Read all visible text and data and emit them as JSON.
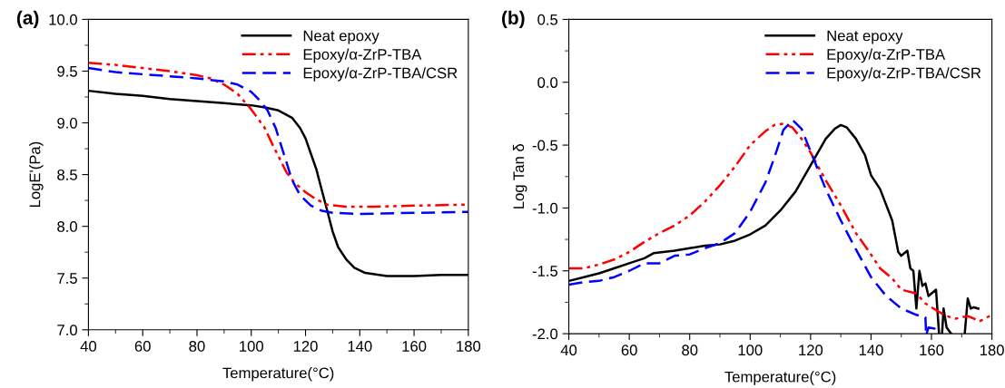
{
  "chart_data": [
    {
      "type": "line",
      "annotations": [
        "(a)"
      ],
      "xlabel": "Temperature(°C)",
      "ylabel": "LogE'(Pa)",
      "xlim": [
        40,
        180
      ],
      "xticks": [
        40,
        60,
        80,
        100,
        120,
        140,
        160,
        180
      ],
      "ylim": [
        7.0,
        10.0
      ],
      "yticks": [
        {
          "value": 7.0,
          "label": "7.0"
        },
        {
          "value": 7.5,
          "label": "7.5"
        },
        {
          "value": 8.0,
          "label": "8.0"
        },
        {
          "value": 8.5,
          "label": "8.5"
        },
        {
          "value": 9.0,
          "label": "9.0"
        },
        {
          "value": 9.5,
          "label": "9.5"
        },
        {
          "value": 10.0,
          "label": "10.0"
        }
      ],
      "grid": false,
      "legend": "top right",
      "series": [
        {
          "name": "Neat epoxy",
          "color": "#000000",
          "line_style": "solid",
          "x": [
            40,
            50,
            60,
            70,
            80,
            90,
            100,
            105,
            110,
            115,
            118,
            120,
            122,
            124,
            126,
            128,
            130,
            132,
            135,
            138,
            142,
            150,
            160,
            170,
            180
          ],
          "values": [
            9.31,
            9.28,
            9.26,
            9.23,
            9.21,
            9.19,
            9.17,
            9.15,
            9.12,
            9.05,
            8.95,
            8.85,
            8.7,
            8.55,
            8.35,
            8.15,
            7.95,
            7.8,
            7.68,
            7.6,
            7.55,
            7.52,
            7.52,
            7.53,
            7.53
          ]
        },
        {
          "name": "Epoxy/α-ZrP-TBA",
          "color": "#ff0000",
          "line_style": "dashdot",
          "x": [
            40,
            50,
            60,
            70,
            80,
            85,
            90,
            95,
            100,
            105,
            108,
            110,
            113,
            116,
            120,
            124,
            128,
            135,
            145,
            160,
            180
          ],
          "values": [
            9.58,
            9.56,
            9.53,
            9.5,
            9.46,
            9.43,
            9.37,
            9.28,
            9.13,
            8.95,
            8.78,
            8.68,
            8.52,
            8.42,
            8.33,
            8.26,
            8.21,
            8.19,
            8.19,
            8.2,
            8.21
          ]
        },
        {
          "name": "Epoxy/α-ZrP-TBA/CSR",
          "color": "#0000ff",
          "line_style": "dashed",
          "x": [
            40,
            50,
            60,
            70,
            80,
            90,
            95,
            100,
            103,
            106,
            109,
            112,
            115,
            118,
            122,
            126,
            130,
            140,
            160,
            180
          ],
          "values": [
            9.53,
            9.49,
            9.47,
            9.45,
            9.43,
            9.4,
            9.37,
            9.3,
            9.22,
            9.12,
            8.95,
            8.7,
            8.45,
            8.3,
            8.2,
            8.15,
            8.13,
            8.12,
            8.13,
            8.14
          ]
        }
      ]
    },
    {
      "type": "line",
      "annotations": [
        "(b)"
      ],
      "xlabel": "Temperature(°C)",
      "ylabel": "Log Tan δ",
      "xlim": [
        40,
        180
      ],
      "xticks": [
        40,
        60,
        80,
        100,
        120,
        140,
        160,
        180
      ],
      "ylim": [
        -2.0,
        0.5
      ],
      "yticks": [
        {
          "value": -2.0,
          "label": "-2.0"
        },
        {
          "value": -1.5,
          "label": "-1.5"
        },
        {
          "value": -1.0,
          "label": "-1.0"
        },
        {
          "value": -0.5,
          "label": "-0.5"
        },
        {
          "value": 0.0,
          "label": "0.0"
        },
        {
          "value": 0.5,
          "label": "0.5"
        }
      ],
      "grid": false,
      "legend": "top right",
      "series": [
        {
          "name": "Neat epoxy",
          "color": "#000000",
          "line_style": "solid",
          "x": [
            40,
            45,
            50,
            55,
            60,
            65,
            68,
            75,
            80,
            85,
            90,
            95,
            100,
            105,
            110,
            115,
            120,
            125,
            128,
            130,
            132,
            135,
            138,
            140,
            143,
            147,
            149,
            150,
            152,
            153,
            154,
            155,
            156,
            157,
            158,
            159,
            161.5,
            162.5,
            162.7,
            163.5,
            164,
            165,
            166.5,
            168,
            171,
            172,
            173,
            174,
            175.5
          ],
          "values": [
            -1.58,
            -1.55,
            -1.52,
            -1.48,
            -1.44,
            -1.4,
            -1.36,
            -1.34,
            -1.32,
            -1.3,
            -1.29,
            -1.26,
            -1.21,
            -1.14,
            -1.02,
            -0.87,
            -0.66,
            -0.45,
            -0.37,
            -0.34,
            -0.36,
            -0.45,
            -0.58,
            -0.74,
            -0.85,
            -1.1,
            -1.35,
            -1.38,
            -1.34,
            -1.48,
            -1.5,
            -1.8,
            -1.5,
            -1.62,
            -1.6,
            -1.7,
            -1.65,
            -2.0,
            null,
            -2.0,
            -1.8,
            -1.95,
            -2.0,
            null,
            -2.0,
            -1.72,
            -1.8,
            -1.79,
            -1.8
          ]
        },
        {
          "name": "Epoxy/α-ZrP-TBA",
          "color": "#ff0000",
          "line_style": "dashdot",
          "x": [
            40,
            45,
            50,
            55,
            60,
            65,
            70,
            75,
            80,
            85,
            90,
            95,
            100,
            105,
            108,
            111,
            114,
            117,
            120,
            125,
            130,
            135,
            140,
            143,
            147,
            150,
            155,
            158,
            162,
            165,
            168,
            172,
            176,
            180
          ],
          "values": [
            -1.48,
            -1.48,
            -1.45,
            -1.41,
            -1.35,
            -1.27,
            -1.2,
            -1.14,
            -1.06,
            -0.95,
            -0.82,
            -0.67,
            -0.5,
            -0.39,
            -0.34,
            -0.33,
            -0.36,
            -0.45,
            -0.56,
            -0.78,
            -0.98,
            -1.2,
            -1.37,
            -1.48,
            -1.56,
            -1.65,
            -1.68,
            -1.76,
            -1.82,
            -1.86,
            -1.88,
            -1.86,
            -1.9,
            -1.85
          ]
        },
        {
          "name": "Epoxy/α-ZrP-TBA/CSR",
          "color": "#0000ff",
          "line_style": "dashed",
          "x": [
            40,
            45,
            50,
            55,
            60,
            65,
            70,
            75,
            80,
            85,
            90,
            95,
            100,
            105,
            108,
            111,
            114,
            117,
            120,
            125,
            130,
            135,
            140,
            145,
            150,
            155,
            158,
            158.2,
            158.3,
            158.4,
            159,
            161,
            163
          ],
          "values": [
            -1.61,
            -1.59,
            -1.58,
            -1.55,
            -1.5,
            -1.44,
            -1.44,
            -1.38,
            -1.37,
            -1.32,
            -1.28,
            -1.2,
            -1.03,
            -0.8,
            -0.6,
            -0.38,
            -0.3,
            -0.37,
            -0.55,
            -0.85,
            -1.1,
            -1.33,
            -1.55,
            -1.7,
            -1.8,
            -1.85,
            -1.87,
            -2.0,
            null,
            -2.0,
            -1.95,
            -1.96,
            -2.0
          ]
        }
      ]
    }
  ]
}
